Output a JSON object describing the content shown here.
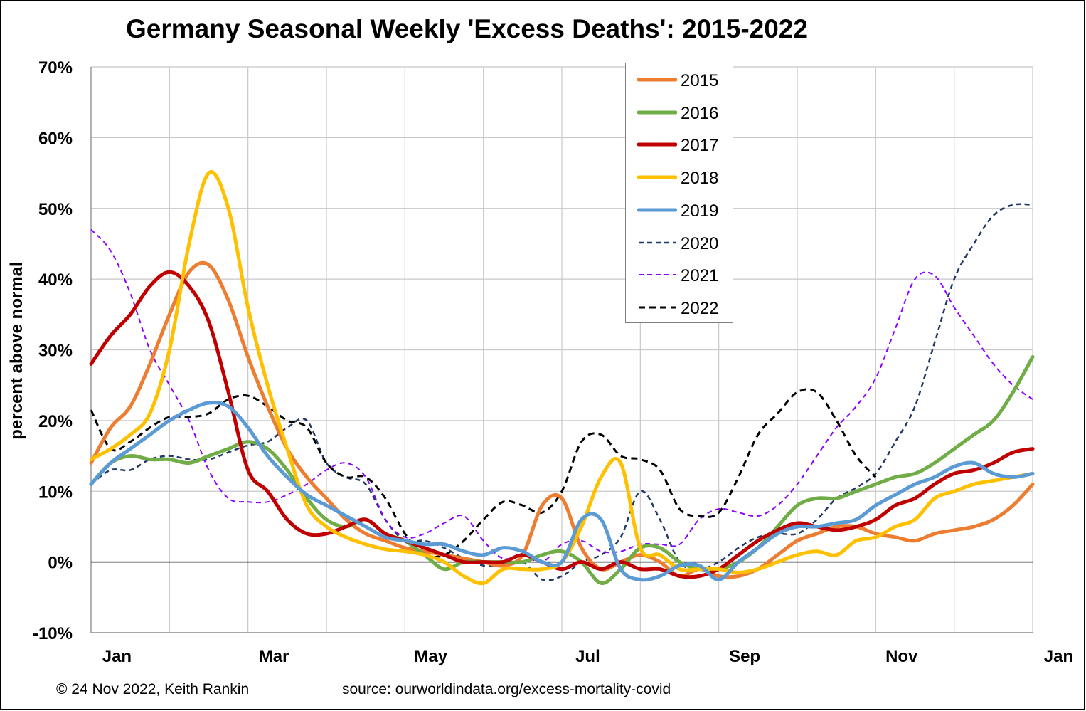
{
  "title": "Germany Seasonal Weekly 'Excess Deaths': 2015-2022",
  "footer": {
    "copyright": "© 24 Nov 2022, Keith Rankin",
    "source": "source: ourworldindata.org/excess-mortality-covid"
  },
  "chart_data": {
    "type": "line",
    "title": "Germany Seasonal Weekly 'Excess Deaths': 2015-2022",
    "xlabel": "",
    "ylabel": "percent above normal",
    "xlim": [
      0,
      12
    ],
    "ylim": [
      -10,
      70
    ],
    "y_ticks": [
      -10,
      0,
      10,
      20,
      30,
      40,
      50,
      60,
      70
    ],
    "y_tick_labels": [
      "-10%",
      "0%",
      "10%",
      "20%",
      "30%",
      "40%",
      "50%",
      "60%",
      "70%"
    ],
    "x_ticks": [
      0,
      2,
      4,
      6,
      8,
      10,
      12
    ],
    "x_tick_labels": [
      "Jan",
      "Mar",
      "May",
      "Jul",
      "Sep",
      "Nov",
      "Jan"
    ],
    "x_units": "months since start of year",
    "grid": true,
    "legend_position": "top-center",
    "series": [
      {
        "name": "2015",
        "color": "#ED7D31",
        "style": "solid",
        "width": 5,
        "x": [
          0,
          0.25,
          0.5,
          0.75,
          1,
          1.25,
          1.5,
          1.75,
          2,
          2.25,
          2.5,
          2.75,
          3,
          3.25,
          3.5,
          3.75,
          4,
          4.25,
          4.5,
          4.75,
          5,
          5.25,
          5.5,
          5.75,
          6,
          6.25,
          6.5,
          6.75,
          7,
          7.25,
          7.5,
          7.75,
          8,
          8.25,
          8.5,
          8.75,
          9,
          9.25,
          9.5,
          9.75,
          10,
          10.25,
          10.5,
          10.75,
          11,
          11.25,
          11.5,
          11.75,
          12
        ],
        "y": [
          14,
          19,
          22,
          28,
          35,
          41,
          42,
          37,
          29,
          22,
          16,
          12,
          9,
          6,
          4,
          3,
          2,
          1.5,
          1,
          0.5,
          0,
          -0.5,
          1,
          8,
          9,
          2,
          -1,
          0,
          1,
          0,
          -2,
          -1,
          -2,
          -2,
          -1,
          1,
          3,
          4,
          5,
          5,
          4,
          3.5,
          3,
          4,
          4.5,
          5,
          6,
          8,
          11
        ]
      },
      {
        "name": "2016",
        "color": "#70AD47",
        "style": "solid",
        "width": 5,
        "x": [
          0,
          0.25,
          0.5,
          0.75,
          1,
          1.25,
          1.5,
          1.75,
          2,
          2.25,
          2.5,
          2.75,
          3,
          3.25,
          3.5,
          3.75,
          4,
          4.25,
          4.5,
          4.75,
          5,
          5.25,
          5.5,
          5.75,
          6,
          6.25,
          6.5,
          6.75,
          7,
          7.25,
          7.5,
          7.75,
          8,
          8.25,
          8.5,
          8.75,
          9,
          9.25,
          9.5,
          9.75,
          10,
          10.25,
          10.5,
          10.75,
          11,
          11.25,
          11.5,
          11.75,
          12
        ],
        "y": [
          11,
          14,
          15,
          14.5,
          14.5,
          14,
          15,
          16,
          17,
          16,
          13,
          9,
          6,
          5,
          6,
          4,
          3,
          1,
          -1,
          0,
          0,
          0,
          0,
          1,
          1.5,
          0,
          -3,
          -1,
          2,
          2,
          0,
          -1,
          -1,
          0,
          2,
          5,
          8,
          9,
          9,
          10,
          11,
          12,
          12.5,
          14,
          16,
          18,
          20,
          24,
          29
        ]
      },
      {
        "name": "2017",
        "color": "#C00000",
        "style": "solid",
        "width": 5,
        "x": [
          0,
          0.25,
          0.5,
          0.75,
          1,
          1.25,
          1.5,
          1.75,
          2,
          2.25,
          2.5,
          2.75,
          3,
          3.25,
          3.5,
          3.75,
          4,
          4.25,
          4.5,
          4.75,
          5,
          5.25,
          5.5,
          5.75,
          6,
          6.25,
          6.5,
          6.75,
          7,
          7.25,
          7.5,
          7.75,
          8,
          8.25,
          8.5,
          8.75,
          9,
          9.25,
          9.5,
          9.75,
          10,
          10.25,
          10.5,
          10.75,
          11,
          11.25,
          11.5,
          11.75,
          12
        ],
        "y": [
          28,
          32,
          35,
          39,
          41,
          39,
          34,
          24,
          13,
          10,
          6,
          4,
          4,
          5,
          6,
          4,
          3,
          2,
          1,
          0,
          0,
          0,
          1,
          0,
          -1,
          0,
          -1,
          0,
          -1,
          -1,
          -2,
          -2,
          -1,
          1,
          3,
          4.5,
          5.5,
          5,
          4.5,
          5,
          6,
          8,
          9,
          11,
          12.5,
          13,
          14,
          15.5,
          16
        ]
      },
      {
        "name": "2018",
        "color": "#FFC000",
        "style": "solid",
        "width": 5,
        "x": [
          0,
          0.25,
          0.5,
          0.75,
          1,
          1.25,
          1.5,
          1.75,
          2,
          2.25,
          2.5,
          2.75,
          3,
          3.25,
          3.5,
          3.75,
          4,
          4.25,
          4.5,
          4.75,
          5,
          5.25,
          5.5,
          5.75,
          6,
          6.25,
          6.5,
          6.75,
          7,
          7.25,
          7.5,
          7.75,
          8,
          8.25,
          8.5,
          8.75,
          9,
          9.25,
          9.5,
          9.75,
          10,
          10.25,
          10.5,
          10.75,
          11,
          11.25,
          11.5,
          11.75,
          12
        ],
        "y": [
          14.5,
          16,
          18,
          21,
          30,
          45,
          55,
          50,
          36,
          25,
          16,
          8,
          5,
          3.5,
          2.5,
          1.8,
          1.5,
          1,
          0,
          -2,
          -3,
          -1,
          -1,
          -1,
          0,
          5,
          12,
          14,
          2,
          1,
          -1,
          -1,
          -1,
          -1.5,
          -1,
          0,
          1,
          1.5,
          1,
          3,
          3.5,
          5,
          6,
          9,
          10,
          11,
          11.5,
          12,
          12.5
        ]
      },
      {
        "name": "2019",
        "color": "#5B9BD5",
        "style": "solid",
        "width": 5,
        "x": [
          0,
          0.25,
          0.5,
          0.75,
          1,
          1.25,
          1.5,
          1.75,
          2,
          2.25,
          2.5,
          2.75,
          3,
          3.25,
          3.5,
          3.75,
          4,
          4.25,
          4.5,
          4.75,
          5,
          5.25,
          5.5,
          5.75,
          6,
          6.25,
          6.5,
          6.75,
          7,
          7.25,
          7.5,
          7.75,
          8,
          8.25,
          8.5,
          8.75,
          9,
          9.25,
          9.5,
          9.75,
          10,
          10.25,
          10.5,
          10.75,
          11,
          11.25,
          11.5,
          11.75,
          12
        ],
        "y": [
          11,
          14,
          16,
          18,
          20,
          21.5,
          22.5,
          22,
          19,
          15,
          12,
          9.5,
          8,
          6.5,
          5,
          3.5,
          3,
          2.5,
          2.5,
          1.5,
          1,
          2,
          1.5,
          0,
          0,
          6,
          6,
          -1,
          -2.5,
          -2,
          -0.5,
          -0.5,
          -2.5,
          0,
          2,
          4,
          5,
          5,
          5.5,
          6,
          8,
          9.5,
          11,
          12,
          13.5,
          14,
          12.5,
          12,
          12.5
        ]
      },
      {
        "name": "2020",
        "color": "#1F3864",
        "style": "dashed",
        "width": 2.5,
        "x": [
          0,
          0.25,
          0.5,
          0.75,
          1,
          1.25,
          1.5,
          1.75,
          2,
          2.25,
          2.5,
          2.75,
          3,
          3.25,
          3.5,
          3.75,
          4,
          4.25,
          4.5,
          4.75,
          5,
          5.25,
          5.5,
          5.75,
          6,
          6.25,
          6.5,
          6.75,
          7,
          7.25,
          7.5,
          7.75,
          8,
          8.25,
          8.5,
          8.75,
          9,
          9.25,
          9.5,
          9.75,
          10,
          10.25,
          10.5,
          10.75,
          11,
          11.25,
          11.5,
          11.75,
          12
        ],
        "y": [
          11,
          13,
          13,
          14.5,
          15,
          14.5,
          14.5,
          15.5,
          16.5,
          17,
          19,
          20,
          14,
          12,
          11,
          6,
          3,
          3,
          2,
          0.5,
          -0.5,
          -0.5,
          0,
          -2.5,
          -2,
          0,
          1,
          3.5,
          10,
          6,
          0,
          -1,
          0,
          2,
          3.5,
          4,
          4,
          6,
          9,
          10.5,
          12.5,
          17,
          22,
          31,
          40,
          45,
          49,
          50.5,
          50.5
        ]
      },
      {
        "name": "2021",
        "color": "#8B00FF",
        "style": "dashed",
        "width": 2,
        "x": [
          0,
          0.25,
          0.5,
          0.75,
          1,
          1.25,
          1.5,
          1.75,
          2,
          2.25,
          2.5,
          2.75,
          3,
          3.25,
          3.5,
          3.75,
          4,
          4.25,
          4.5,
          4.75,
          5,
          5.25,
          5.5,
          5.75,
          6,
          6.25,
          6.5,
          6.75,
          7,
          7.25,
          7.5,
          7.75,
          8,
          8.25,
          8.5,
          8.75,
          9,
          9.25,
          9.5,
          9.75,
          10,
          10.25,
          10.5,
          10.75,
          11,
          11.25,
          11.5,
          11.75,
          12
        ],
        "y": [
          47,
          44,
          38,
          30,
          25,
          20,
          13,
          9,
          8.5,
          8.5,
          9.5,
          11,
          13,
          14,
          12,
          6,
          3.5,
          4,
          5.5,
          6.5,
          3,
          0.5,
          1,
          0,
          2.5,
          3,
          1.5,
          1.5,
          2.5,
          2.5,
          2.5,
          6,
          7.5,
          7,
          6.5,
          8,
          11,
          15,
          19,
          22,
          26,
          33,
          40,
          40.5,
          36,
          32,
          28,
          25,
          23
        ]
      },
      {
        "name": "2022",
        "color": "#000000",
        "style": "dashed",
        "width": 3,
        "x": [
          0,
          0.25,
          0.5,
          0.75,
          1,
          1.25,
          1.5,
          1.75,
          2,
          2.25,
          2.5,
          2.75,
          3,
          3.25,
          3.5,
          3.75,
          4,
          4.25,
          4.5,
          4.75,
          5,
          5.25,
          5.5,
          5.75,
          6,
          6.25,
          6.5,
          6.75,
          7,
          7.25,
          7.5,
          7.75,
          8,
          8.25,
          8.5,
          8.75,
          9,
          9.25,
          9.5,
          9.75,
          10
        ],
        "y": [
          21.5,
          16,
          17,
          19,
          20.5,
          20.5,
          21,
          23,
          23.5,
          22,
          20,
          19,
          14,
          12,
          12,
          9,
          4,
          1,
          1,
          3,
          6,
          8.5,
          8,
          7,
          10,
          17,
          18,
          15,
          14.5,
          13,
          7.5,
          6.5,
          7,
          12,
          18,
          21,
          24,
          24,
          20,
          15,
          12
        ]
      }
    ]
  }
}
